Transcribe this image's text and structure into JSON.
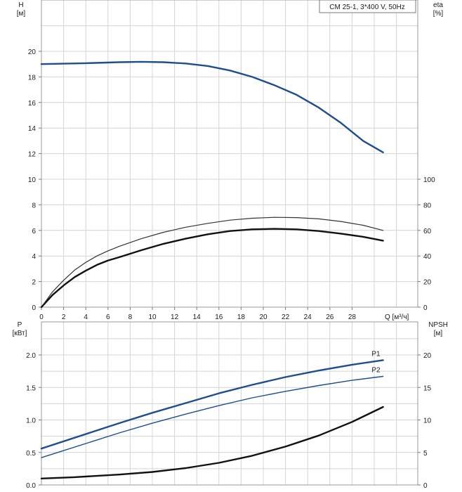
{
  "chart_data": [
    {
      "type": "line",
      "title": "CM 25-1, 3*400 V, 50Hz",
      "xlabel": "Q [м³/ч]",
      "ylabel_left": "H",
      "ylabel_left_unit": "[м]",
      "ylabel_right": "eta",
      "ylabel_right_unit": "[%]",
      "xlim": [
        0,
        33
      ],
      "ylim_left": [
        0,
        22
      ],
      "ylim_right": [
        0,
        120
      ],
      "x_ticks": [
        "0",
        "2",
        "4",
        "6",
        "8",
        "10",
        "12",
        "14",
        "16",
        "18",
        "20",
        "22",
        "24",
        "26",
        "28"
      ],
      "y_left_ticks": [
        "0",
        "2",
        "4",
        "6",
        "8",
        "10",
        "12",
        "14",
        "16",
        "18",
        "20"
      ],
      "y_right_ticks": [
        "0",
        "20",
        "40",
        "60",
        "80",
        "100"
      ],
      "grid": true,
      "series": [
        {
          "axis": "left",
          "color": "#1f4e8c",
          "width": 2.4,
          "x": [
            0,
            4,
            7,
            9,
            11,
            13,
            15,
            17,
            19,
            21,
            23,
            25,
            27,
            29,
            30.8
          ],
          "y": [
            19.0,
            19.07,
            19.15,
            19.18,
            19.15,
            19.05,
            18.85,
            18.5,
            18.0,
            17.35,
            16.6,
            15.6,
            14.4,
            13.0,
            12.1
          ]
        },
        {
          "axis": "left",
          "color": "#333333",
          "width": 1.2,
          "x": [
            0,
            1,
            2,
            3,
            4,
            5,
            6,
            7,
            9,
            11,
            13,
            15,
            17,
            19,
            21,
            23,
            25,
            27,
            29,
            30.8
          ],
          "y": [
            0,
            1.2,
            2.1,
            2.9,
            3.5,
            4.0,
            4.4,
            4.75,
            5.35,
            5.85,
            6.25,
            6.55,
            6.8,
            6.95,
            7.02,
            7.0,
            6.9,
            6.7,
            6.4,
            6.0
          ]
        },
        {
          "axis": "left",
          "color": "#111111",
          "width": 2.4,
          "x": [
            0,
            1,
            2,
            3,
            4,
            5,
            6,
            7,
            9,
            11,
            13,
            15,
            17,
            19,
            21,
            23,
            25,
            27,
            29,
            30.8
          ],
          "y": [
            0,
            0.95,
            1.7,
            2.35,
            2.85,
            3.3,
            3.65,
            3.9,
            4.45,
            4.95,
            5.35,
            5.7,
            5.95,
            6.08,
            6.12,
            6.08,
            5.95,
            5.75,
            5.5,
            5.2
          ]
        }
      ]
    },
    {
      "type": "line",
      "xlabel": "",
      "ylabel_left": "P",
      "ylabel_left_unit": "[кВт]",
      "ylabel_right": "NPSH",
      "ylabel_right_unit": "[м]",
      "xlim": [
        0,
        33
      ],
      "ylim_left": [
        0,
        2.0
      ],
      "ylim_right": [
        0,
        20
      ],
      "y_left_ticks": [
        "0.0",
        "0.5",
        "1.0",
        "1.5",
        "2.0"
      ],
      "y_right_ticks": [
        "0",
        "5",
        "10",
        "15",
        "20"
      ],
      "grid": true,
      "series": [
        {
          "name": "P1",
          "axis": "left",
          "color": "#1f4e8c",
          "width": 2.4,
          "x": [
            0,
            7,
            10,
            13,
            16,
            19,
            22,
            25,
            28,
            30.8
          ],
          "y": [
            0.56,
            0.95,
            1.11,
            1.26,
            1.41,
            1.54,
            1.66,
            1.76,
            1.85,
            1.92
          ]
        },
        {
          "name": "P2",
          "axis": "left",
          "color": "#1f4e8c",
          "width": 1.4,
          "x": [
            0,
            7,
            10,
            13,
            16,
            19,
            22,
            25,
            28,
            30.8
          ],
          "y": [
            0.42,
            0.8,
            0.95,
            1.09,
            1.22,
            1.34,
            1.44,
            1.53,
            1.61,
            1.67
          ]
        },
        {
          "axis": "right",
          "color": "#111111",
          "width": 2.4,
          "x": [
            0,
            3,
            7,
            10,
            13,
            16,
            19,
            22,
            25,
            28,
            30.8
          ],
          "y": [
            1.0,
            1.2,
            1.6,
            2.0,
            2.6,
            3.4,
            4.5,
            5.9,
            7.6,
            9.7,
            12.0
          ]
        }
      ]
    }
  ]
}
